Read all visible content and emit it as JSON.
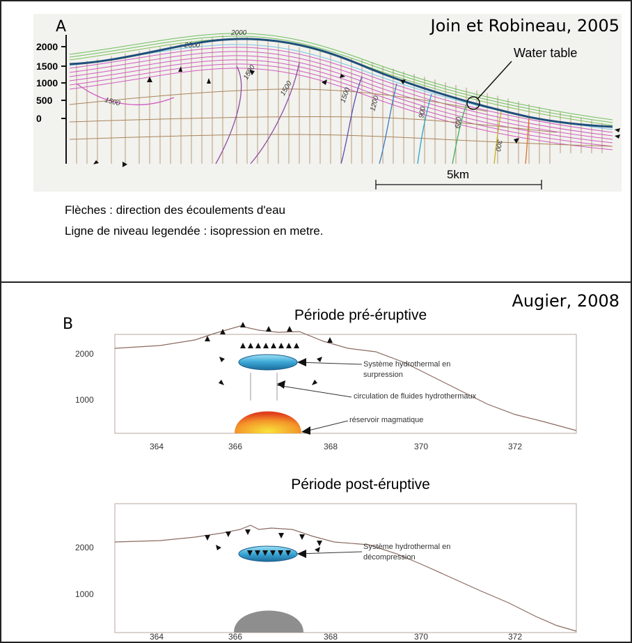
{
  "panel_a": {
    "letter": "A",
    "citation": "Join et Robineau, 2005",
    "y_ticks": [
      "2000",
      "1500",
      "1000",
      "500",
      "0"
    ],
    "water_table_label": "Water table",
    "scale_bar_label": "5km",
    "isopression_labels": [
      "1500",
      "1500",
      "1500",
      "1500",
      "1200",
      "900",
      "600",
      "300",
      "2000",
      "2000"
    ],
    "caption_line1": "Flèches : direction des écoulements d'eau",
    "caption_line2": "Ligne de niveau legendée : isopression en metre."
  },
  "panel_b": {
    "letter": "B",
    "citation": "Augier, 2008",
    "pre": {
      "title": "Période pré-éruptive",
      "y_ticks": [
        "2000",
        "1000"
      ],
      "x_ticks": [
        "364",
        "366",
        "368",
        "370",
        "372"
      ],
      "label_hydro_1": "Système hydrothermal en",
      "label_hydro_2": "surpression",
      "label_circulation": "circulation de fluides hydrothermaux",
      "label_reservoir": "réservoir magmatique"
    },
    "post": {
      "title": "Période post-éruptive",
      "y_ticks": [
        "2000",
        "1000"
      ],
      "x_ticks": [
        "364",
        "366",
        "368",
        "370",
        "372"
      ],
      "label_hydro_1": "Système hydrothermal en",
      "label_hydro_2": "décompression"
    }
  },
  "colors": {
    "water_table": "#1f4f7a",
    "hydrothermal": "#3aa0d0",
    "reservoir_hot": "#e8541a",
    "reservoir_cold": "#8a8a8a",
    "topo_line": "#8a6a60"
  }
}
